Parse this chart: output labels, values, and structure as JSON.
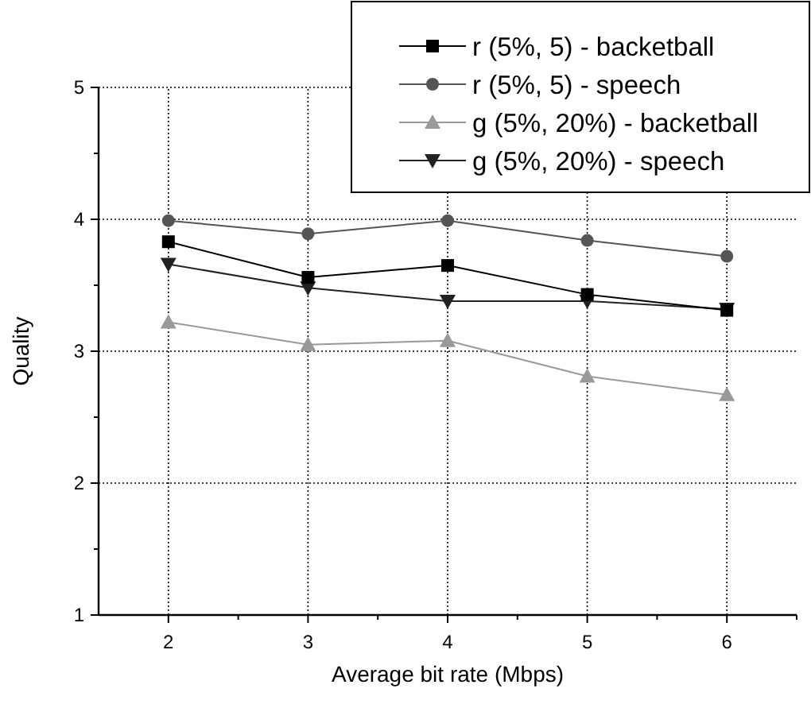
{
  "chart_data": {
    "type": "line",
    "xlabel": "Average bit rate (Mbps)",
    "ylabel": "Quality",
    "x": [
      2,
      3,
      4,
      5,
      6
    ],
    "xlim": [
      1.5,
      6.5
    ],
    "xticks": [
      2,
      3,
      4,
      5,
      6
    ],
    "ylim": [
      1,
      5
    ],
    "yticks": [
      1,
      2,
      3,
      4,
      5
    ],
    "grid": true,
    "legend": "top right",
    "line_style": "solid",
    "series": [
      {
        "name": "r (5%, 5) - backetball",
        "color": "#000000",
        "marker": "square",
        "values": [
          3.83,
          3.56,
          3.65,
          3.43,
          3.31
        ]
      },
      {
        "name": "r (5%, 5) - speech",
        "color": "#555555",
        "marker": "circle",
        "values": [
          3.99,
          3.89,
          3.99,
          3.84,
          3.72
        ]
      },
      {
        "name": "g (5%, 20%) - backetball",
        "color": "#999999",
        "marker": "triangle",
        "values": [
          3.22,
          3.05,
          3.08,
          2.81,
          2.67
        ]
      },
      {
        "name": "g (5%, 20%) - speech",
        "color": "#222222",
        "marker": "triangle-down",
        "values": [
          3.66,
          3.48,
          3.38,
          3.38,
          3.32
        ]
      }
    ]
  }
}
